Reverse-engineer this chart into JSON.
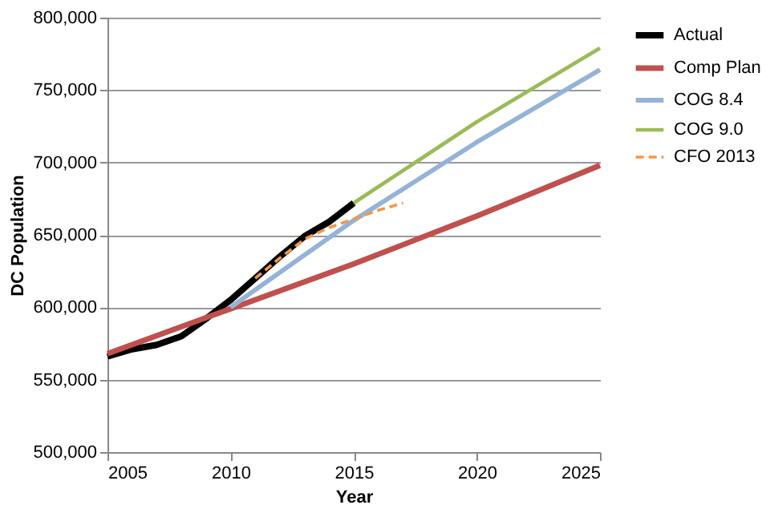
{
  "chart_data": {
    "type": "line",
    "xlabel": "Year",
    "ylabel": "DC Population",
    "xlim": [
      2005,
      2025
    ],
    "xticks": [
      2005,
      2010,
      2015,
      2020,
      2025
    ],
    "ylim": [
      500000,
      800000
    ],
    "yticks": [
      {
        "value": 500000,
        "label": "500,000"
      },
      {
        "value": 550000,
        "label": "550,000"
      },
      {
        "value": 600000,
        "label": "600,000"
      },
      {
        "value": 650000,
        "label": "650,000"
      },
      {
        "value": 700000,
        "label": "700,000"
      },
      {
        "value": 750000,
        "label": "750,000"
      },
      {
        "value": 800000,
        "label": "800,000"
      }
    ],
    "grid": "y",
    "legend": "right",
    "marker": "none",
    "series": [
      {
        "name": "Actual",
        "color": "#000000",
        "line_style": "solid",
        "x": [
          2005,
          2006,
          2007,
          2008,
          2009,
          2010,
          2011,
          2012,
          2013,
          2014,
          2015
        ],
        "values": [
          566000,
          571000,
          574000,
          580000,
          592000,
          605000,
          620000,
          635000,
          649000,
          659000,
          672000
        ]
      },
      {
        "name": "Comp Plan",
        "color": "#c0504d",
        "line_style": "solid",
        "x": [
          2005,
          2010,
          2015,
          2020,
          2025
        ],
        "values": [
          568000,
          599000,
          630000,
          663000,
          698000
        ]
      },
      {
        "name": "COG 8.4",
        "color": "#95b3d7",
        "line_style": "solid",
        "x": [
          2010,
          2012,
          2015,
          2020,
          2025
        ],
        "values": [
          600000,
          624000,
          660000,
          714000,
          764000
        ]
      },
      {
        "name": "COG 9.0",
        "color": "#9bbb59",
        "line_style": "solid",
        "x": [
          2015,
          2020,
          2025
        ],
        "values": [
          672000,
          728000,
          779000
        ]
      },
      {
        "name": "CFO 2013",
        "color": "#f79646",
        "line_style": "dashed",
        "x": [
          2011,
          2012,
          2013,
          2014,
          2015,
          2016,
          2017
        ],
        "values": [
          620000,
          634000,
          647000,
          655000,
          661000,
          667000,
          672000
        ]
      }
    ]
  }
}
